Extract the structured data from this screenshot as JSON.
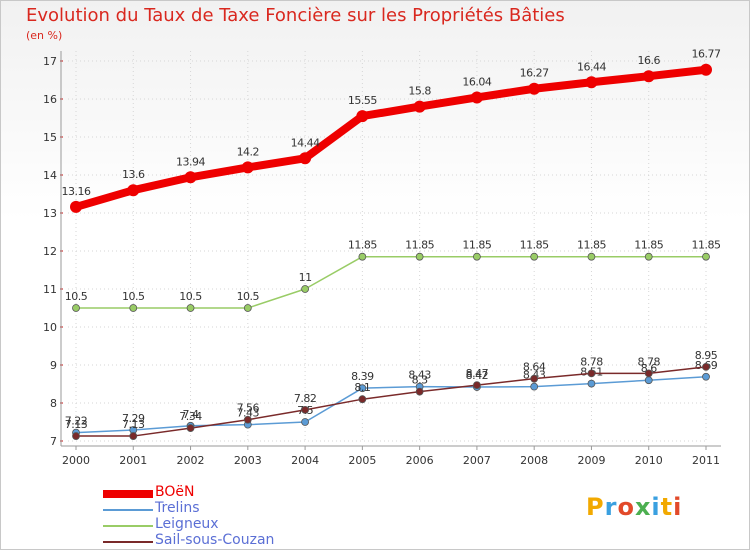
{
  "title": "Evolution du Taux de Taxe Foncière sur les Propriétés Bâties",
  "unit": "(en %)",
  "logo": "Proxiti",
  "chart_data": {
    "type": "line",
    "title": "Evolution du Taux de Taxe Foncière sur les Propriétés Bâties",
    "ylabel": "(en %)",
    "xlabel": "",
    "x": [
      "2000",
      "2001",
      "2002",
      "2003",
      "2004",
      "2005",
      "2006",
      "2007",
      "2008",
      "2009",
      "2010",
      "2011"
    ],
    "ylim": [
      7,
      17
    ],
    "yticks": [
      7,
      8,
      9,
      10,
      11,
      12,
      13,
      14,
      15,
      16,
      17
    ],
    "grid": true,
    "legend": "bottom-left",
    "series": [
      {
        "name": "BOëN",
        "color": "#ee0000",
        "values": [
          13.16,
          13.6,
          13.94,
          14.2,
          14.44,
          15.55,
          15.8,
          16.04,
          16.27,
          16.44,
          16.6,
          16.77
        ],
        "labels": [
          "13.16",
          "13.6",
          "13.94",
          "14.2",
          "14.44",
          "15.55",
          "15.8",
          "16.04",
          "16.27",
          "16.44",
          "16.6",
          "16.77"
        ]
      },
      {
        "name": "Trelins",
        "color": "#5b9bd5",
        "values": [
          7.22,
          7.29,
          7.4,
          7.43,
          7.5,
          8.39,
          8.43,
          8.42,
          8.43,
          8.51,
          8.6,
          8.69
        ],
        "labels": [
          "7.22",
          "7.29",
          "7.4",
          "7.43",
          "7.5",
          "8.39",
          "8.43",
          "8.42",
          "8.43",
          "8.51",
          "8.6",
          "8.69"
        ]
      },
      {
        "name": "Leigneux",
        "color": "#99cc66",
        "values": [
          10.5,
          10.5,
          10.5,
          10.5,
          11,
          11.85,
          11.85,
          11.85,
          11.85,
          11.85,
          11.85,
          11.85
        ],
        "labels": [
          "10.5",
          "10.5",
          "10.5",
          "10.5",
          "11",
          "11.85",
          "11.85",
          "11.85",
          "11.85",
          "11.85",
          "11.85",
          "11.85"
        ]
      },
      {
        "name": "Sail-sous-Couzan",
        "color": "#7a2a2a",
        "values": [
          7.13,
          7.13,
          7.34,
          7.56,
          7.82,
          8.1,
          8.3,
          8.47,
          8.64,
          8.78,
          8.78,
          8.95
        ],
        "labels": [
          "7.13",
          "7.13",
          "7.34",
          "7.56",
          "7.82",
          "8.1",
          "8.3",
          "8.47",
          "8.64",
          "8.78",
          "8.78",
          "8.95"
        ]
      }
    ]
  }
}
